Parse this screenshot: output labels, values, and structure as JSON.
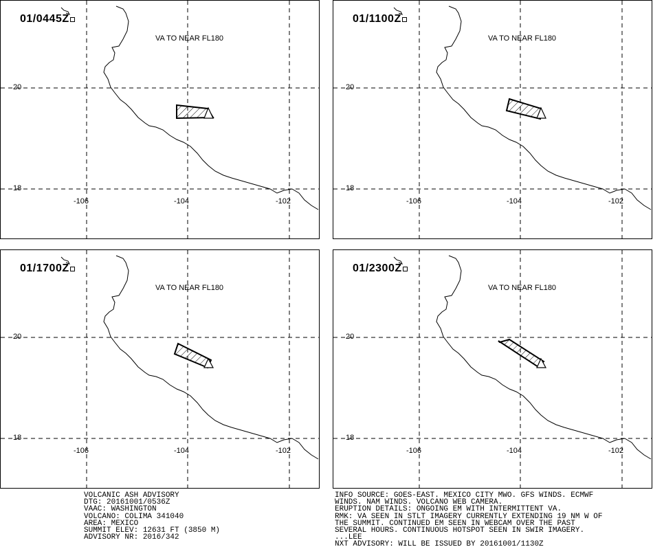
{
  "panels": [
    {
      "time": "01/0445Z",
      "note": "VA TO NEAR FL180"
    },
    {
      "time": "01/1100Z",
      "note": "VA TO NEAR FL180"
    },
    {
      "time": "01/1700Z",
      "note": "VA TO NEAR FL180"
    },
    {
      "time": "01/2300Z",
      "note": "VA TO NEAR FL180"
    }
  ],
  "grid": {
    "lat_labels": [
      "20",
      "18"
    ],
    "lon_labels": [
      "-106",
      "-104",
      "-102"
    ]
  },
  "advisory_left": [
    "VOLCANIC ASH ADVISORY",
    "DTG: 20161001/0536Z",
    "VAAC: WASHINGTON",
    "VOLCANO: COLIMA 341040",
    "AREA: MEXICO",
    "SUMMIT ELEV: 12631 FT (3850 M)",
    "ADVISORY NR: 2016/342"
  ],
  "advisory_right": [
    "INFO SOURCE: GOES-EAST. MEXICO CITY MWO. GFS WINDS. ECMWF",
    "WINDS. NAM WINDS. VOLCANO WEB CAMERA.",
    "ERUPTION DETAILS: ONGOING EM WITH INTERMITTENT VA.",
    "RMK: VA SEEN IN STLT IMAGERY CURRENTLY EXTENDING 19 NM W OF",
    "THE SUMMIT. CONTINUED EM SEEN IN WEBCAM OVER THE PAST",
    "SEVERAL HOURS. CONTINUOUS HOTSPOT SEEN IN SWIR IMAGERY.",
    "...LEE",
    "NXT ADVISORY: WILL BE ISSUED BY 20161001/1130Z"
  ]
}
